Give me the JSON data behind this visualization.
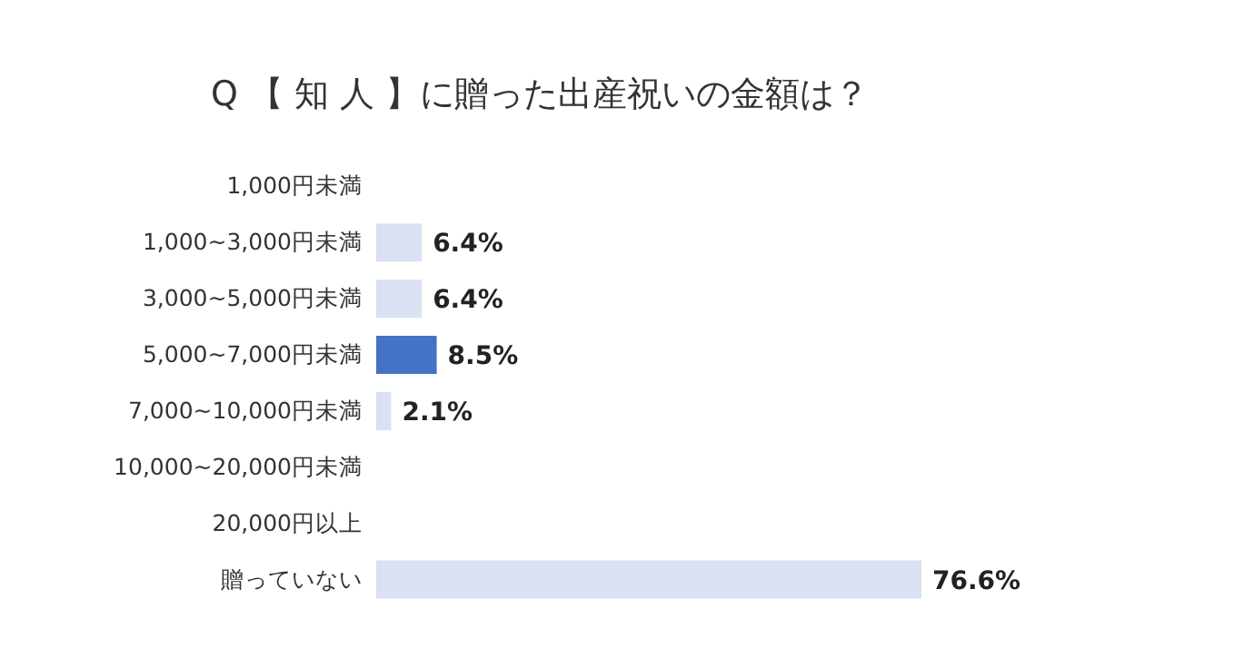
{
  "chart_data": {
    "type": "bar",
    "orientation": "horizontal",
    "title": "Q 【 知 人 】に贈った出産祝いの金額は？",
    "categories": [
      "1,000円未満",
      "1,000~3,000円未満",
      "3,000~5,000円未満",
      "5,000~7,000円未満",
      "7,000~10,000円未満",
      "10,000~20,000円未満",
      "20,000円以上",
      "贈っていない"
    ],
    "values": [
      0,
      6.4,
      6.4,
      8.5,
      2.1,
      0,
      0,
      76.6
    ],
    "value_labels": [
      null,
      "6.4%",
      "6.4%",
      "8.5%",
      "2.1%",
      null,
      null,
      "76.6%"
    ],
    "colors": [
      "#d9e1f2",
      "#d9e1f2",
      "#d9e1f2",
      "#4472c4",
      "#d9e1f2",
      "#d9e1f2",
      "#d9e1f2",
      "#d9e1f2"
    ]
  }
}
